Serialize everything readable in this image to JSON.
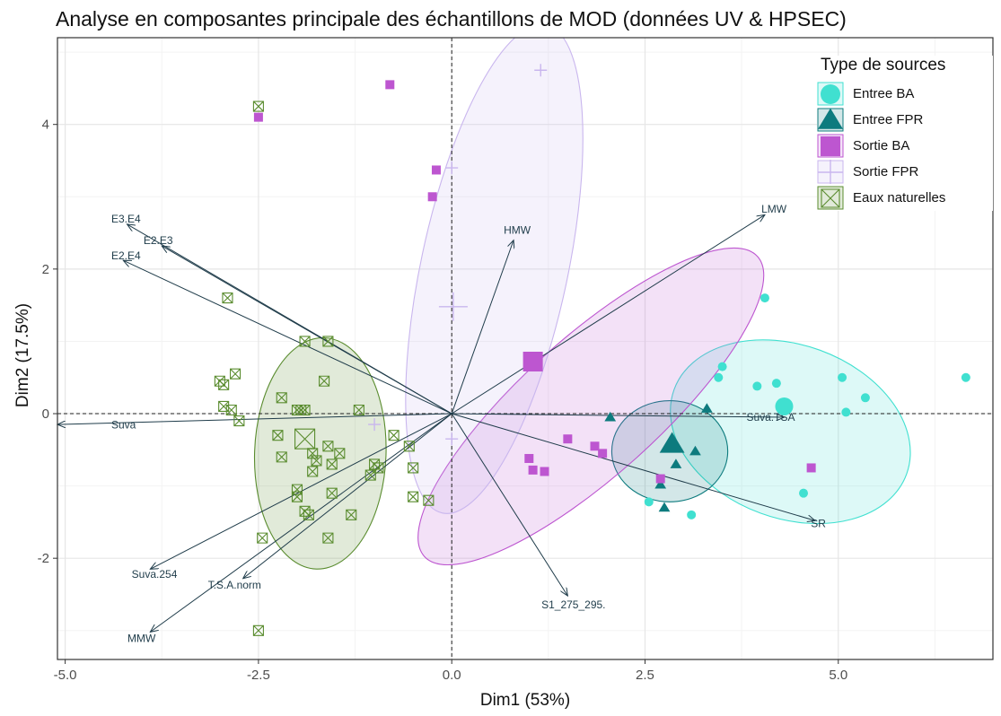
{
  "chart_data": {
    "type": "scatter",
    "title": "Analyse en composantes principale des échantillons de MOD (données UV & HPSEC)",
    "xlabel": "Dim1 (53%)",
    "ylabel": "Dim2 (17.5%)",
    "xlim": [
      -5.1,
      7.0
    ],
    "ylim": [
      -3.4,
      5.2
    ],
    "x_ticks": [
      -5.0,
      -2.5,
      0.0,
      2.5,
      5.0
    ],
    "x_tick_labels": [
      "-5.0",
      "-2.5",
      "0.0",
      "2.5",
      "5.0"
    ],
    "y_ticks": [
      -2,
      0,
      2,
      4
    ],
    "y_tick_labels": [
      "-2",
      "0",
      "2",
      "4"
    ],
    "grid": true,
    "legend_title": "Type de sources",
    "legend_position": "top-right",
    "groups": [
      {
        "name": "Entree BA",
        "color": "#40e0d0",
        "marker": "circle",
        "points": [
          [
            4.05,
            1.6
          ],
          [
            3.5,
            0.65
          ],
          [
            3.45,
            0.5
          ],
          [
            3.95,
            0.38
          ],
          [
            4.2,
            0.42
          ],
          [
            5.05,
            0.5
          ],
          [
            5.35,
            0.22
          ],
          [
            5.1,
            0.02
          ],
          [
            6.65,
            0.5
          ],
          [
            4.55,
            -1.1
          ],
          [
            2.55,
            -1.22
          ],
          [
            3.1,
            -1.4
          ]
        ],
        "centroid": [
          4.3,
          0.1
        ],
        "ellipse": {
          "center": [
            4.38,
            -0.25
          ],
          "rx": 1.6,
          "ry": 1.2,
          "angle_deg": 20
        }
      },
      {
        "name": "Entree FPR",
        "color": "#0d7b7e",
        "marker": "triangle",
        "points": [
          [
            2.05,
            -0.05
          ],
          [
            3.3,
            0.07
          ],
          [
            2.7,
            -0.98
          ],
          [
            2.9,
            -0.7
          ],
          [
            2.75,
            -1.3
          ],
          [
            3.15,
            -0.52
          ]
        ],
        "centroid": [
          2.85,
          -0.42
        ],
        "ellipse": {
          "center": [
            2.82,
            -0.52
          ],
          "rx": 0.75,
          "ry": 0.7,
          "angle_deg": 0
        }
      },
      {
        "name": "Sortie BA",
        "color": "#bd56d0",
        "marker": "square",
        "points": [
          [
            -0.8,
            4.55
          ],
          [
            -2.5,
            4.1
          ],
          [
            -0.2,
            3.37
          ],
          [
            -0.25,
            3.0
          ],
          [
            1.5,
            -0.35
          ],
          [
            1.85,
            -0.45
          ],
          [
            1.95,
            -0.55
          ],
          [
            1.0,
            -0.62
          ],
          [
            1.05,
            -0.78
          ],
          [
            1.2,
            -0.8
          ],
          [
            2.7,
            -0.9
          ],
          [
            4.65,
            -0.75
          ]
        ],
        "centroid": [
          1.05,
          0.72
        ],
        "ellipse": {
          "center": [
            1.8,
            0.1
          ],
          "rx": 2.9,
          "ry": 0.95,
          "angle_deg": -42
        }
      },
      {
        "name": "Sortie FPR",
        "color": "#c9b6ee",
        "marker": "plus",
        "points": [
          [
            1.15,
            4.75
          ],
          [
            0.0,
            3.4
          ],
          [
            -1.0,
            -0.15
          ],
          [
            0.0,
            -0.35
          ]
        ],
        "centroid": [
          0.02,
          1.48
        ],
        "ellipse": {
          "center": [
            0.55,
            2.0
          ],
          "rx": 0.95,
          "ry": 3.45,
          "angle_deg": 12
        }
      },
      {
        "name": "Eaux naturelles",
        "color": "#5a8c2f",
        "marker": "boxed-x",
        "points": [
          [
            -2.5,
            4.25
          ],
          [
            -2.9,
            1.6
          ],
          [
            -1.9,
            1.0
          ],
          [
            -1.6,
            1.0
          ],
          [
            -1.65,
            0.45
          ],
          [
            -3.0,
            0.45
          ],
          [
            -2.95,
            0.4
          ],
          [
            -2.8,
            0.55
          ],
          [
            -2.2,
            0.22
          ],
          [
            -2.95,
            0.1
          ],
          [
            -2.85,
            0.05
          ],
          [
            -2.0,
            0.05
          ],
          [
            -1.95,
            0.05
          ],
          [
            -1.9,
            0.05
          ],
          [
            -2.75,
            -0.1
          ],
          [
            -1.2,
            0.05
          ],
          [
            -2.25,
            -0.3
          ],
          [
            -0.75,
            -0.3
          ],
          [
            -1.6,
            -0.45
          ],
          [
            -1.8,
            -0.55
          ],
          [
            -1.45,
            -0.55
          ],
          [
            -2.2,
            -0.6
          ],
          [
            -1.75,
            -0.65
          ],
          [
            -0.55,
            -0.45
          ],
          [
            -1.55,
            -0.7
          ],
          [
            -1.8,
            -0.8
          ],
          [
            -1.0,
            -0.7
          ],
          [
            -0.95,
            -0.75
          ],
          [
            -0.5,
            -0.75
          ],
          [
            -1.05,
            -0.85
          ],
          [
            -2.0,
            -1.05
          ],
          [
            -1.55,
            -1.1
          ],
          [
            -2.0,
            -1.15
          ],
          [
            -0.5,
            -1.15
          ],
          [
            -0.3,
            -1.2
          ],
          [
            -1.9,
            -1.35
          ],
          [
            -1.85,
            -1.4
          ],
          [
            -1.3,
            -1.4
          ],
          [
            -2.45,
            -1.72
          ],
          [
            -1.6,
            -1.72
          ],
          [
            -2.5,
            -3.0
          ]
        ],
        "centroid": [
          -1.9,
          -0.35
        ],
        "ellipse": {
          "center": [
            -1.7,
            -0.55
          ],
          "rx": 0.85,
          "ry": 1.6,
          "angle_deg": 2
        }
      }
    ],
    "variables": [
      {
        "name": "E3.E4",
        "x": -4.2,
        "y": 2.62
      },
      {
        "name": "E2.E3",
        "x": -3.75,
        "y": 2.32
      },
      {
        "name": "E2.E4",
        "x": -4.25,
        "y": 2.12
      },
      {
        "name": "Suva",
        "x": -5.1,
        "y": -0.15
      },
      {
        "name": "HMW",
        "x": 0.8,
        "y": 2.4
      },
      {
        "name": "LMW",
        "x": 4.05,
        "y": 2.75
      },
      {
        "name": "Suva.TSA",
        "x": 4.3,
        "y": -0.05
      },
      {
        "name": "SR",
        "x": 4.7,
        "y": -1.48
      },
      {
        "name": "S1_275_295.",
        "x": 1.5,
        "y": -2.52
      },
      {
        "name": "Suva.254",
        "x": -3.9,
        "y": -2.15
      },
      {
        "name": "T.S.A.norm",
        "x": -2.7,
        "y": -2.28
      },
      {
        "name": "MMW",
        "x": -3.9,
        "y": -3.02
      }
    ]
  }
}
